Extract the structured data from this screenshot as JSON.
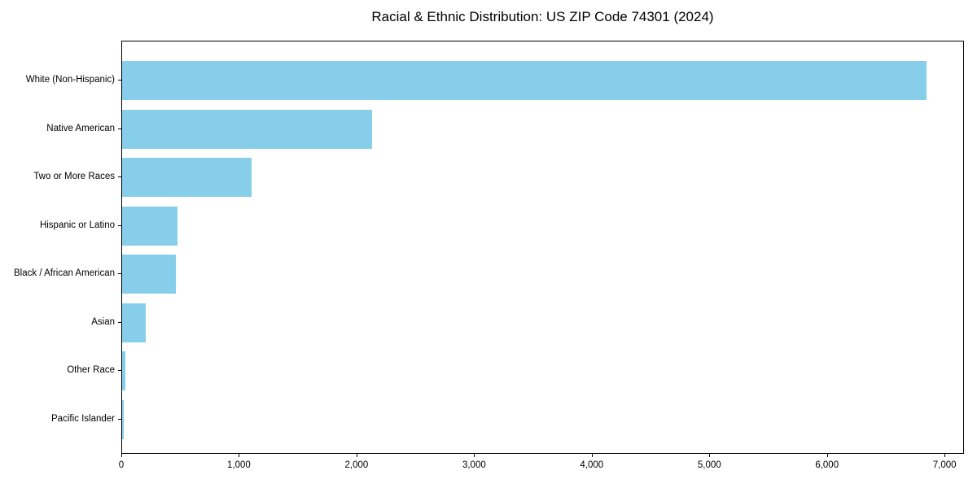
{
  "chart_data": {
    "type": "bar",
    "orientation": "horizontal",
    "title": "Racial & Ethnic Distribution: US ZIP Code 74301 (2024)",
    "categories": [
      "White (Non-Hispanic)",
      "Native American",
      "Two or More Races",
      "Hispanic or Latino",
      "Black / African American",
      "Asian",
      "Other Race",
      "Pacific Islander"
    ],
    "values": [
      6840,
      2125,
      1100,
      470,
      460,
      200,
      25,
      15
    ],
    "xlabel": "",
    "ylabel": "",
    "x_tick_values": [
      0,
      1000,
      2000,
      3000,
      4000,
      5000,
      6000,
      7000
    ],
    "x_tick_labels": [
      "0",
      "1,000",
      "2,000",
      "3,000",
      "4,000",
      "5,000",
      "6,000",
      "7,000"
    ],
    "xlim": [
      0,
      7165
    ],
    "bar_color": "#87CEEB",
    "grid": false,
    "legend": false,
    "value_labels": false,
    "sort_order": "descending"
  }
}
